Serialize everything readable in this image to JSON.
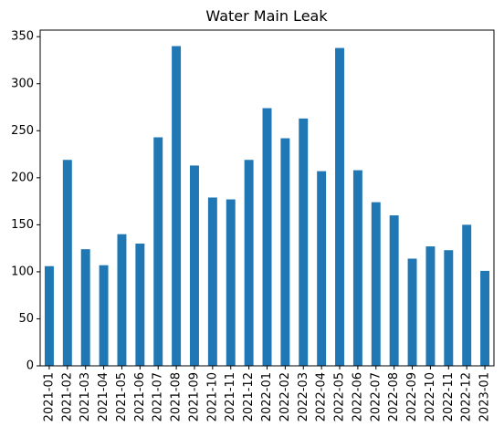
{
  "chart_data": {
    "type": "bar",
    "title": "Water Main Leak",
    "xlabel": "",
    "ylabel": "",
    "categories": [
      "2021-01",
      "2021-02",
      "2021-03",
      "2021-04",
      "2021-05",
      "2021-06",
      "2021-07",
      "2021-08",
      "2021-09",
      "2021-10",
      "2021-11",
      "2021-12",
      "2022-01",
      "2022-02",
      "2022-03",
      "2022-04",
      "2022-05",
      "2022-06",
      "2022-07",
      "2022-08",
      "2022-09",
      "2022-10",
      "2022-11",
      "2022-12",
      "2023-01"
    ],
    "values": [
      106,
      219,
      124,
      107,
      140,
      130,
      243,
      340,
      213,
      179,
      177,
      219,
      274,
      242,
      263,
      207,
      338,
      208,
      174,
      160,
      114,
      127,
      123,
      150,
      101
    ],
    "ylim": [
      0,
      357
    ],
    "yticks": [
      0,
      50,
      100,
      150,
      200,
      250,
      300,
      350
    ],
    "bar_color": "#1f77b4",
    "grid": false,
    "legend": "none"
  }
}
